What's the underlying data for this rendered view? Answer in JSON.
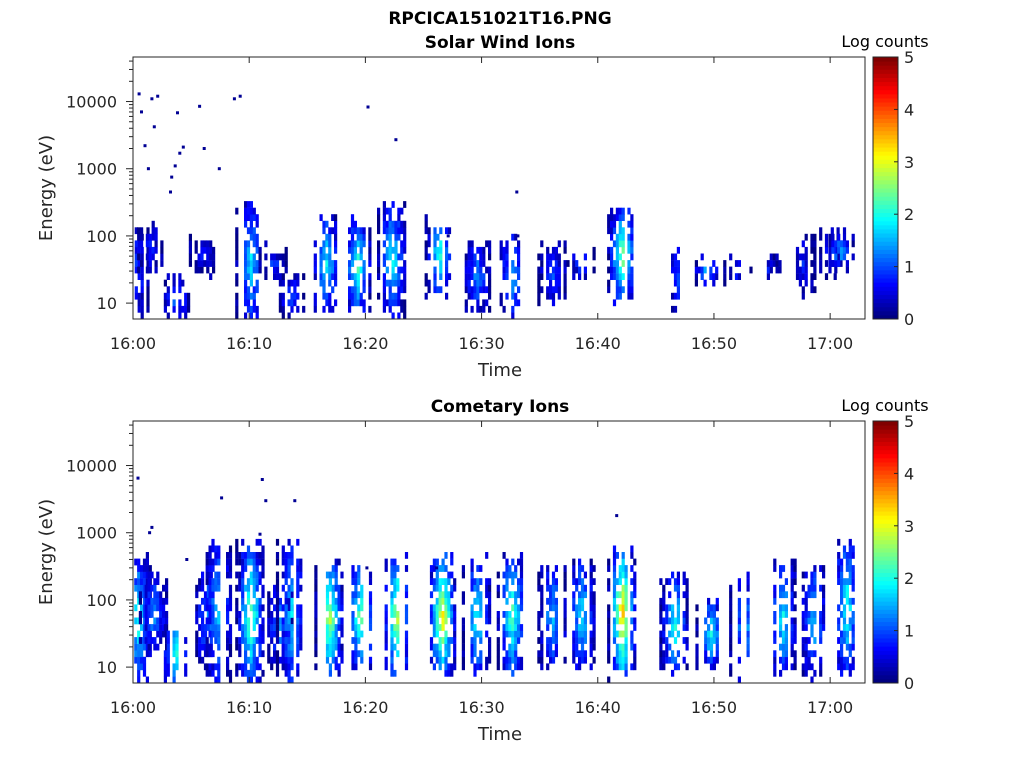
{
  "figure": {
    "title": "RPCICA151021T16.PNG"
  },
  "chart_data": [
    {
      "type": "heatmap",
      "title": "Solar Wind Ions",
      "xlabel": "Time",
      "ylabel": "Energy (eV)",
      "x_ticks": [
        "16:00",
        "16:10",
        "16:20",
        "16:30",
        "16:40",
        "16:50",
        "17:00"
      ],
      "x_range_minutes": [
        0,
        63
      ],
      "y_scale": "log",
      "y_ticks": [
        "10",
        "100",
        "1000",
        "10000"
      ],
      "y_range": [
        5.8,
        46000
      ],
      "colorbar": {
        "label": "Log counts",
        "ticks": [
          "0",
          "1",
          "2",
          "3",
          "4",
          "5"
        ],
        "range": [
          0,
          5
        ],
        "colormap": "jet"
      },
      "bursts": [
        {
          "t": 0.1,
          "lo": 6,
          "hi": 120,
          "c": 1.0
        },
        {
          "t": 1.3,
          "lo": 30,
          "hi": 160,
          "c": 0.8
        },
        {
          "t": 3.6,
          "lo": 6,
          "hi": 22,
          "c": 1.3
        },
        {
          "t": 6.0,
          "lo": 30,
          "hi": 90,
          "c": 0.7
        },
        {
          "t": 10.0,
          "lo": 6,
          "hi": 280,
          "c": 1.8
        },
        {
          "t": 12.0,
          "lo": 25,
          "hi": 60,
          "c": 0.9
        },
        {
          "t": 13.5,
          "lo": 6,
          "hi": 25,
          "c": 1.0
        },
        {
          "t": 16.5,
          "lo": 8,
          "hi": 180,
          "c": 2.0
        },
        {
          "t": 19.2,
          "lo": 8,
          "hi": 170,
          "c": 2.3
        },
        {
          "t": 22.2,
          "lo": 7,
          "hi": 280,
          "c": 2.0
        },
        {
          "t": 26.3,
          "lo": 15,
          "hi": 170,
          "c": 2.3
        },
        {
          "t": 29.5,
          "lo": 8,
          "hi": 75,
          "c": 1.4
        },
        {
          "t": 32.5,
          "lo": 6,
          "hi": 90,
          "c": 1.6
        },
        {
          "t": 36.0,
          "lo": 10,
          "hi": 80,
          "c": 1.1
        },
        {
          "t": 38.5,
          "lo": 25,
          "hi": 60,
          "c": 1.0
        },
        {
          "t": 42.0,
          "lo": 12,
          "hi": 230,
          "c": 2.7
        },
        {
          "t": 47.0,
          "lo": 8,
          "hi": 75,
          "c": 1.2
        },
        {
          "t": 49.3,
          "lo": 20,
          "hi": 45,
          "c": 1.6
        },
        {
          "t": 52.0,
          "lo": 20,
          "hi": 45,
          "c": 0.8
        },
        {
          "t": 54.5,
          "lo": 25,
          "hi": 45,
          "c": 0.7
        },
        {
          "t": 57.5,
          "lo": 15,
          "hi": 90,
          "c": 0.8
        },
        {
          "t": 60.0,
          "lo": 30,
          "hi": 120,
          "c": 1.0
        },
        {
          "t": 60.8,
          "lo": 30,
          "hi": 110,
          "c": 1.6
        }
      ],
      "scatter": [
        [
          0.4,
          13000
        ],
        [
          0.6,
          7000
        ],
        [
          1.5,
          11000
        ],
        [
          1.7,
          4200
        ],
        [
          2.0,
          12000
        ],
        [
          3.7,
          6800
        ],
        [
          3.5,
          1100
        ],
        [
          3.9,
          1700
        ],
        [
          4.2,
          2100
        ],
        [
          3.2,
          750
        ],
        [
          3.1,
          450
        ],
        [
          5.6,
          8500
        ],
        [
          6.0,
          2000
        ],
        [
          7.3,
          1000
        ],
        [
          8.6,
          11000
        ],
        [
          9.1,
          12000
        ],
        [
          20.1,
          8300
        ],
        [
          22.5,
          2700
        ],
        [
          32.9,
          450
        ],
        [
          1.2,
          1000
        ],
        [
          0.9,
          2200
        ],
        [
          27.0,
          100
        ],
        [
          33.0,
          100
        ]
      ]
    },
    {
      "type": "heatmap",
      "title": "Cometary Ions",
      "xlabel": "Time",
      "ylabel": "Energy (eV)",
      "x_ticks": [
        "16:00",
        "16:10",
        "16:20",
        "16:30",
        "16:40",
        "16:50",
        "17:00"
      ],
      "x_range_minutes": [
        0,
        63
      ],
      "y_scale": "log",
      "y_ticks": [
        "10",
        "100",
        "1000",
        "10000"
      ],
      "y_range": [
        5.8,
        46000
      ],
      "colorbar": {
        "label": "Log counts",
        "ticks": [
          "0",
          "1",
          "2",
          "3",
          "4",
          "5"
        ],
        "range": [
          0,
          5
        ],
        "colormap": "jet"
      },
      "bursts": [
        {
          "t": 0.3,
          "lo": 6,
          "hi": 400,
          "c": 2.1
        },
        {
          "t": 1.7,
          "lo": 20,
          "hi": 200,
          "c": 1.5
        },
        {
          "t": 3.6,
          "lo": 6,
          "hi": 40,
          "c": 2.4
        },
        {
          "t": 6.3,
          "lo": 10,
          "hi": 300,
          "c": 1.4
        },
        {
          "t": 7.2,
          "lo": 6,
          "hi": 700,
          "c": 1.7
        },
        {
          "t": 10.0,
          "lo": 6,
          "hi": 600,
          "c": 2.6
        },
        {
          "t": 12.5,
          "lo": 10,
          "hi": 150,
          "c": 1.4
        },
        {
          "t": 13.5,
          "lo": 6,
          "hi": 600,
          "c": 1.8
        },
        {
          "t": 16.8,
          "lo": 8,
          "hi": 350,
          "c": 2.9
        },
        {
          "t": 19.5,
          "lo": 10,
          "hi": 300,
          "c": 2.6
        },
        {
          "t": 22.6,
          "lo": 8,
          "hi": 400,
          "c": 3.0
        },
        {
          "t": 26.5,
          "lo": 8,
          "hi": 400,
          "c": 3.3
        },
        {
          "t": 29.5,
          "lo": 8,
          "hi": 400,
          "c": 2.1
        },
        {
          "t": 32.5,
          "lo": 8,
          "hi": 450,
          "c": 2.4
        },
        {
          "t": 36.0,
          "lo": 10,
          "hi": 300,
          "c": 1.7
        },
        {
          "t": 38.5,
          "lo": 10,
          "hi": 350,
          "c": 1.9
        },
        {
          "t": 42.0,
          "lo": 8,
          "hi": 500,
          "c": 3.6
        },
        {
          "t": 46.5,
          "lo": 8,
          "hi": 250,
          "c": 2.1
        },
        {
          "t": 49.6,
          "lo": 10,
          "hi": 100,
          "c": 2.0
        },
        {
          "t": 52.5,
          "lo": 8,
          "hi": 200,
          "c": 1.6
        },
        {
          "t": 55.8,
          "lo": 8,
          "hi": 350,
          "c": 2.0
        },
        {
          "t": 58.5,
          "lo": 8,
          "hi": 300,
          "c": 1.6
        },
        {
          "t": 61.3,
          "lo": 8,
          "hi": 800,
          "c": 2.1
        }
      ],
      "scatter": [
        [
          0.3,
          6500
        ],
        [
          1.5,
          1200
        ],
        [
          1.3,
          1000
        ],
        [
          7.5,
          3300
        ],
        [
          11.0,
          6200
        ],
        [
          11.3,
          3000
        ],
        [
          13.8,
          3000
        ],
        [
          10.8,
          950
        ],
        [
          41.5,
          1800
        ],
        [
          4.5,
          400
        ],
        [
          20.0,
          300
        ],
        [
          26.0,
          300
        ]
      ]
    }
  ]
}
